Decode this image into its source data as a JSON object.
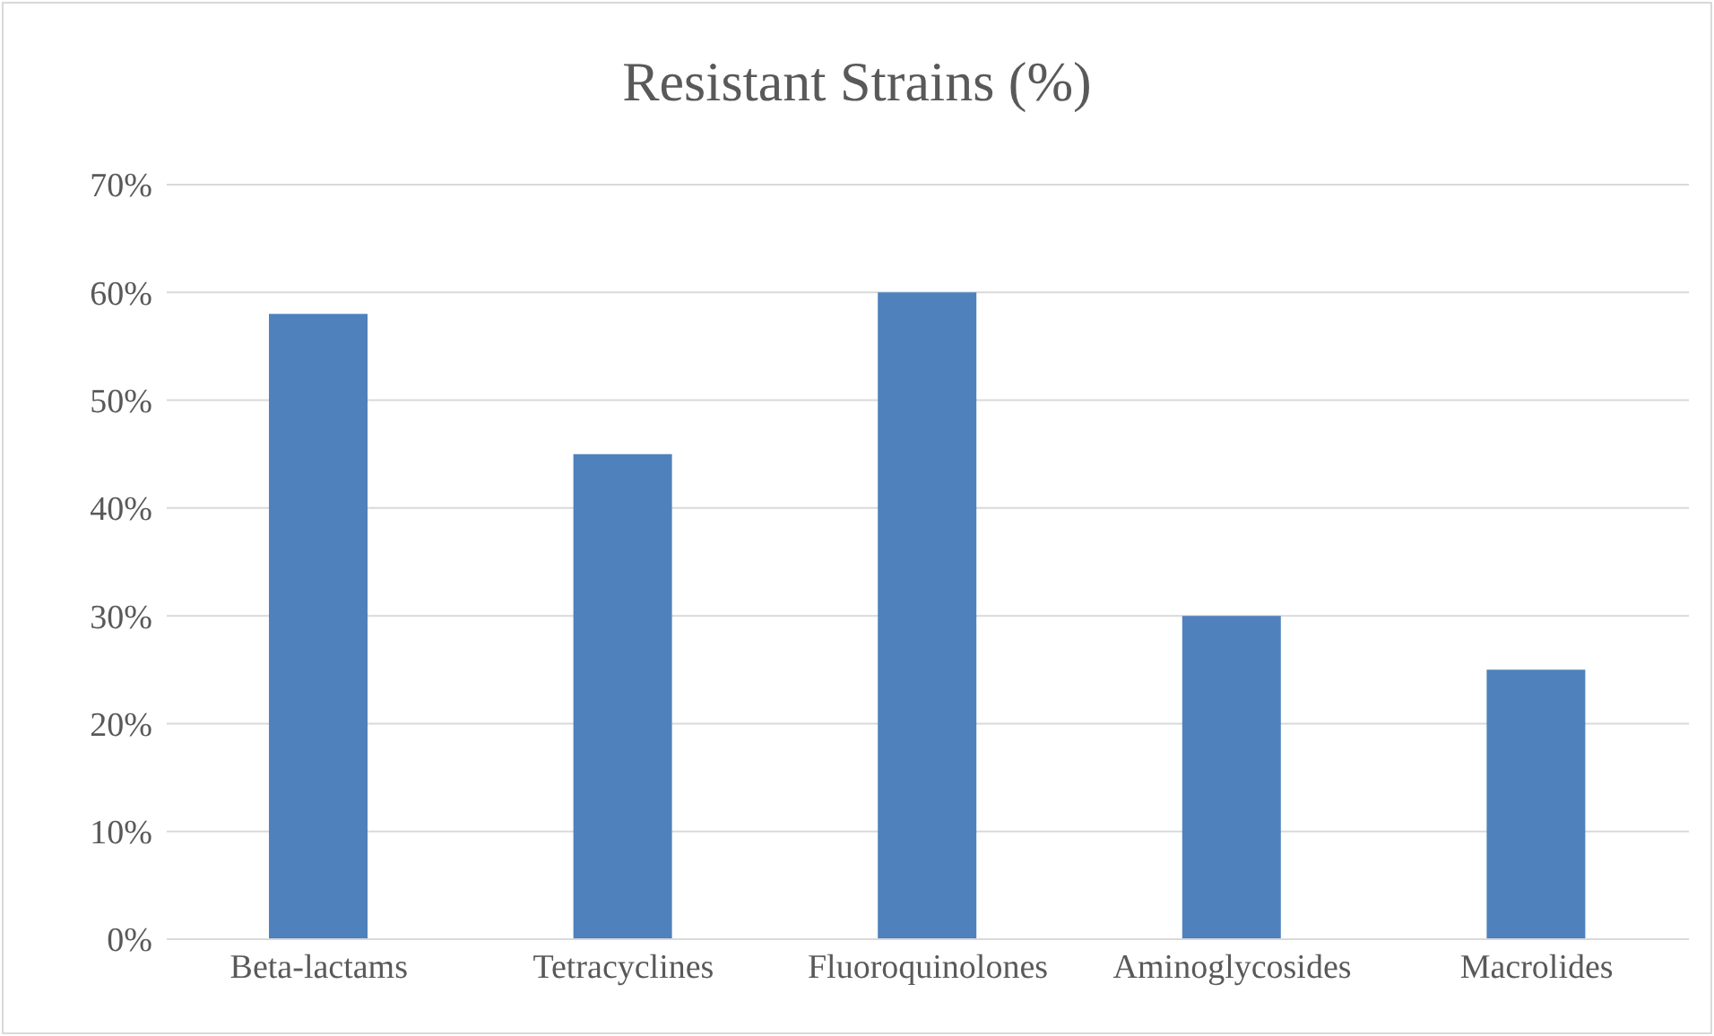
{
  "chart_data": {
    "type": "bar",
    "title": "Resistant Strains (%)",
    "categories": [
      "Beta-lactams",
      "Tetracyclines",
      "Fluoroquinolones",
      "Aminoglycosides",
      "Macrolides"
    ],
    "values": [
      58,
      45,
      60,
      30,
      25
    ],
    "color": "#4f81bd",
    "ylim": [
      0,
      70
    ],
    "yticks": [
      {
        "value": 0,
        "label": "0%"
      },
      {
        "value": 10,
        "label": "10%"
      },
      {
        "value": 20,
        "label": "20%"
      },
      {
        "value": 30,
        "label": "30%"
      },
      {
        "value": 40,
        "label": "40%"
      },
      {
        "value": 50,
        "label": "50%"
      },
      {
        "value": 60,
        "label": "60%"
      },
      {
        "value": 70,
        "label": "70%"
      }
    ],
    "grid": "y"
  }
}
